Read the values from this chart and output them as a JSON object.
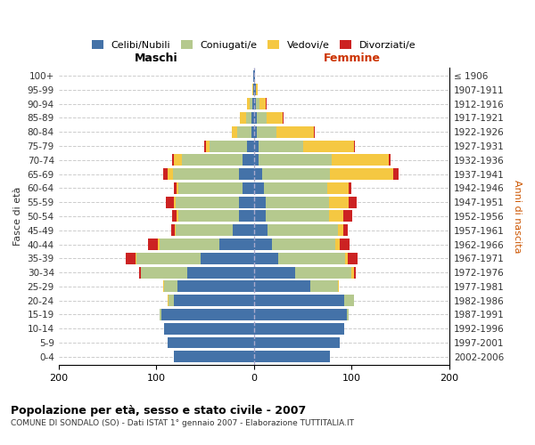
{
  "age_groups": [
    "0-4",
    "5-9",
    "10-14",
    "15-19",
    "20-24",
    "25-29",
    "30-34",
    "35-39",
    "40-44",
    "45-49",
    "50-54",
    "55-59",
    "60-64",
    "65-69",
    "70-74",
    "75-79",
    "80-84",
    "85-89",
    "90-94",
    "95-99",
    "100+"
  ],
  "birth_years": [
    "2002-2006",
    "1997-2001",
    "1992-1996",
    "1987-1991",
    "1982-1986",
    "1977-1981",
    "1972-1976",
    "1967-1971",
    "1962-1966",
    "1957-1961",
    "1952-1956",
    "1947-1951",
    "1942-1946",
    "1937-1941",
    "1932-1936",
    "1927-1931",
    "1922-1926",
    "1917-1921",
    "1912-1916",
    "1907-1911",
    "≤ 1906"
  ],
  "colors": {
    "celibi": "#4472a8",
    "coniugati": "#b5c98e",
    "vedovi": "#f5c842",
    "divorziati": "#cc2222"
  },
  "males": {
    "celibi": [
      82,
      88,
      92,
      95,
      82,
      78,
      68,
      55,
      35,
      22,
      15,
      15,
      12,
      15,
      12,
      7,
      3,
      3,
      2,
      1,
      1
    ],
    "coniugati": [
      0,
      0,
      0,
      2,
      5,
      14,
      48,
      65,
      62,
      58,
      62,
      65,
      65,
      68,
      62,
      38,
      14,
      5,
      2,
      0,
      0
    ],
    "vedovi": [
      0,
      0,
      0,
      0,
      1,
      1,
      0,
      1,
      1,
      1,
      2,
      2,
      2,
      5,
      8,
      4,
      6,
      6,
      3,
      1,
      0
    ],
    "divorziati": [
      0,
      0,
      0,
      0,
      0,
      0,
      2,
      10,
      10,
      4,
      5,
      8,
      3,
      5,
      2,
      2,
      0,
      0,
      0,
      0,
      0
    ]
  },
  "females": {
    "celibi": [
      78,
      88,
      92,
      95,
      92,
      58,
      42,
      25,
      18,
      14,
      12,
      12,
      10,
      8,
      5,
      5,
      3,
      3,
      2,
      2,
      1
    ],
    "coniugati": [
      0,
      0,
      0,
      2,
      10,
      28,
      58,
      68,
      65,
      72,
      65,
      65,
      65,
      70,
      75,
      45,
      20,
      10,
      4,
      0,
      0
    ],
    "vedovi": [
      0,
      0,
      0,
      0,
      0,
      1,
      2,
      3,
      5,
      5,
      14,
      20,
      22,
      65,
      58,
      52,
      38,
      16,
      6,
      2,
      0
    ],
    "divorziati": [
      0,
      0,
      0,
      0,
      0,
      0,
      2,
      10,
      10,
      5,
      10,
      8,
      3,
      5,
      2,
      1,
      1,
      1,
      1,
      0,
      0
    ]
  },
  "title": "Popolazione per età, sesso e stato civile - 2007",
  "subtitle": "COMUNE DI SONDALO (SO) - Dati ISTAT 1° gennaio 2007 - Elaborazione TUTTITALIA.IT",
  "ylabel_left": "Fasce di età",
  "ylabel_right": "Anni di nascita",
  "xlabel_left": "Maschi",
  "xlabel_right": "Femmine",
  "xlim": 200,
  "legend_labels": [
    "Celibi/Nubili",
    "Coniugati/e",
    "Vedovi/e",
    "Divorziati/e"
  ]
}
